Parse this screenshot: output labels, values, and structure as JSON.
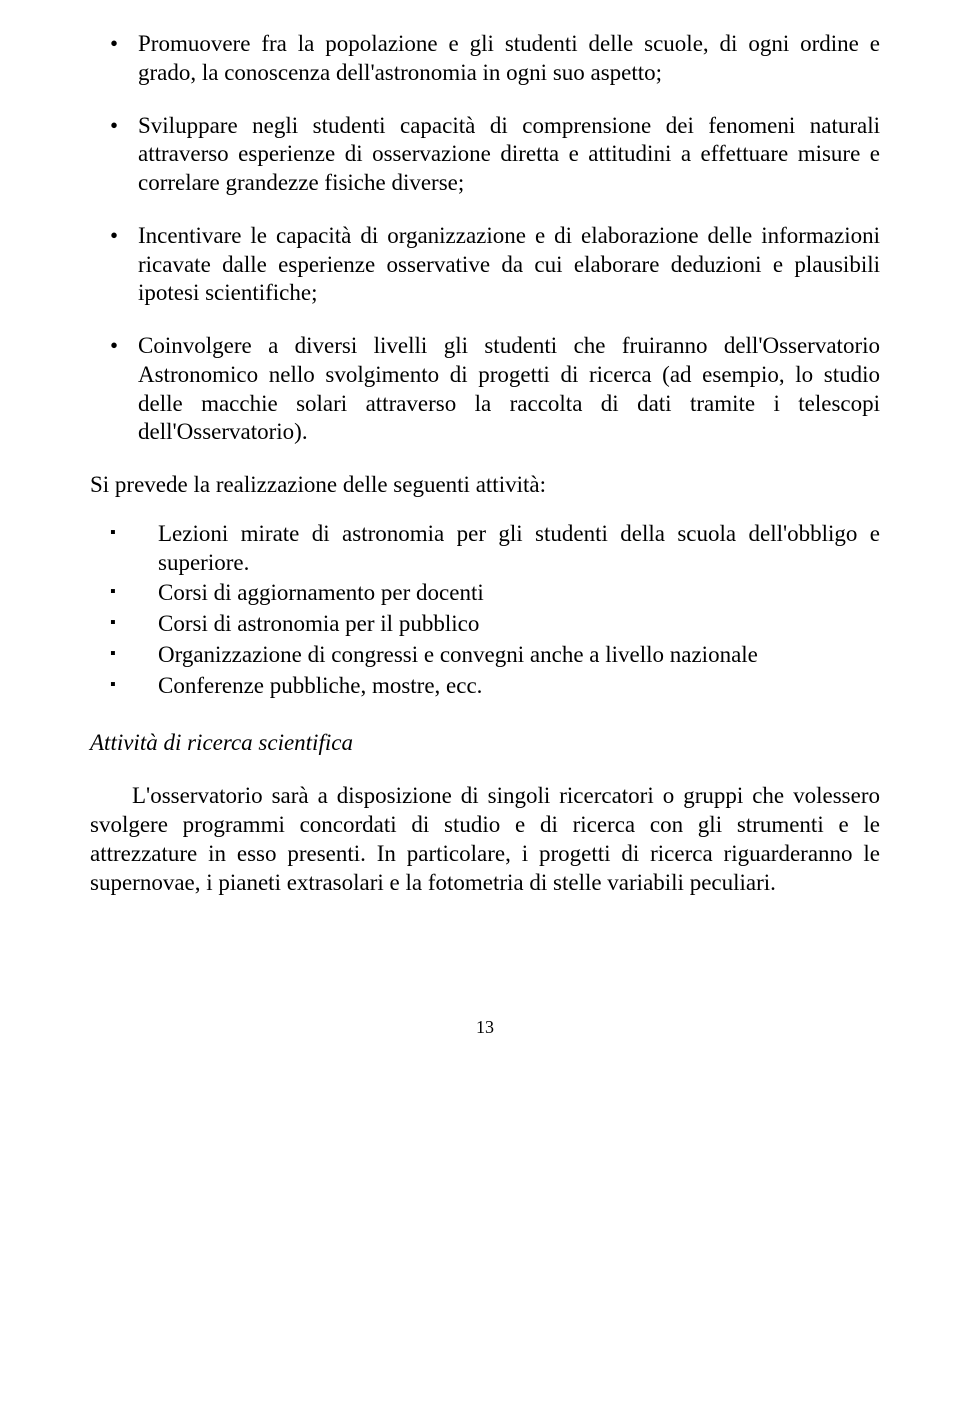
{
  "roundBullets": [
    "Promuovere fra la popolazione e gli studenti delle scuole, di ogni ordine e grado, la conoscenza dell'astronomia in ogni suo aspetto;",
    "Sviluppare negli studenti capacità di comprensione dei fenomeni naturali attraverso esperienze di osservazione diretta e attitudini a effettuare misure e correlare grandezze fisiche diverse;",
    "Incentivare le capacità di organizzazione e di elaborazione delle informazioni ricavate dalle esperienze osservative da cui elaborare deduzioni e plausibili ipotesi scientifiche;",
    "Coinvolgere a diversi livelli gli studenti che fruiranno dell'Osservatorio Astronomico nello svolgimento di progetti di ricerca (ad esempio, lo studio delle macchie solari attraverso la raccolta di dati tramite i telescopi dell'Osservatorio)."
  ],
  "activitiesLead": "Si prevede la realizzazione delle seguenti attività:",
  "squareBullets": [
    "Lezioni mirate di astronomia per gli studenti della scuola dell'obbligo e superiore.",
    "Corsi di aggiornamento per docenti",
    "Corsi di astronomia per il pubblico",
    "Organizzazione di congressi e convegni anche a livello nazionale",
    "Conferenze pubbliche, mostre, ecc."
  ],
  "subtitle": "Attività di ricerca scientifica",
  "bodyPara": "L'osservatorio sarà a disposizione di singoli ricercatori o gruppi che volessero svolgere programmi concordati di studio e di ricerca con gli strumenti e le attrezzature in esso presenti. In particolare, i progetti di ricerca riguarderanno le supernovae, i pianeti extrasolari e la fotometria di stelle variabili peculiari.",
  "pageNumber": "13"
}
